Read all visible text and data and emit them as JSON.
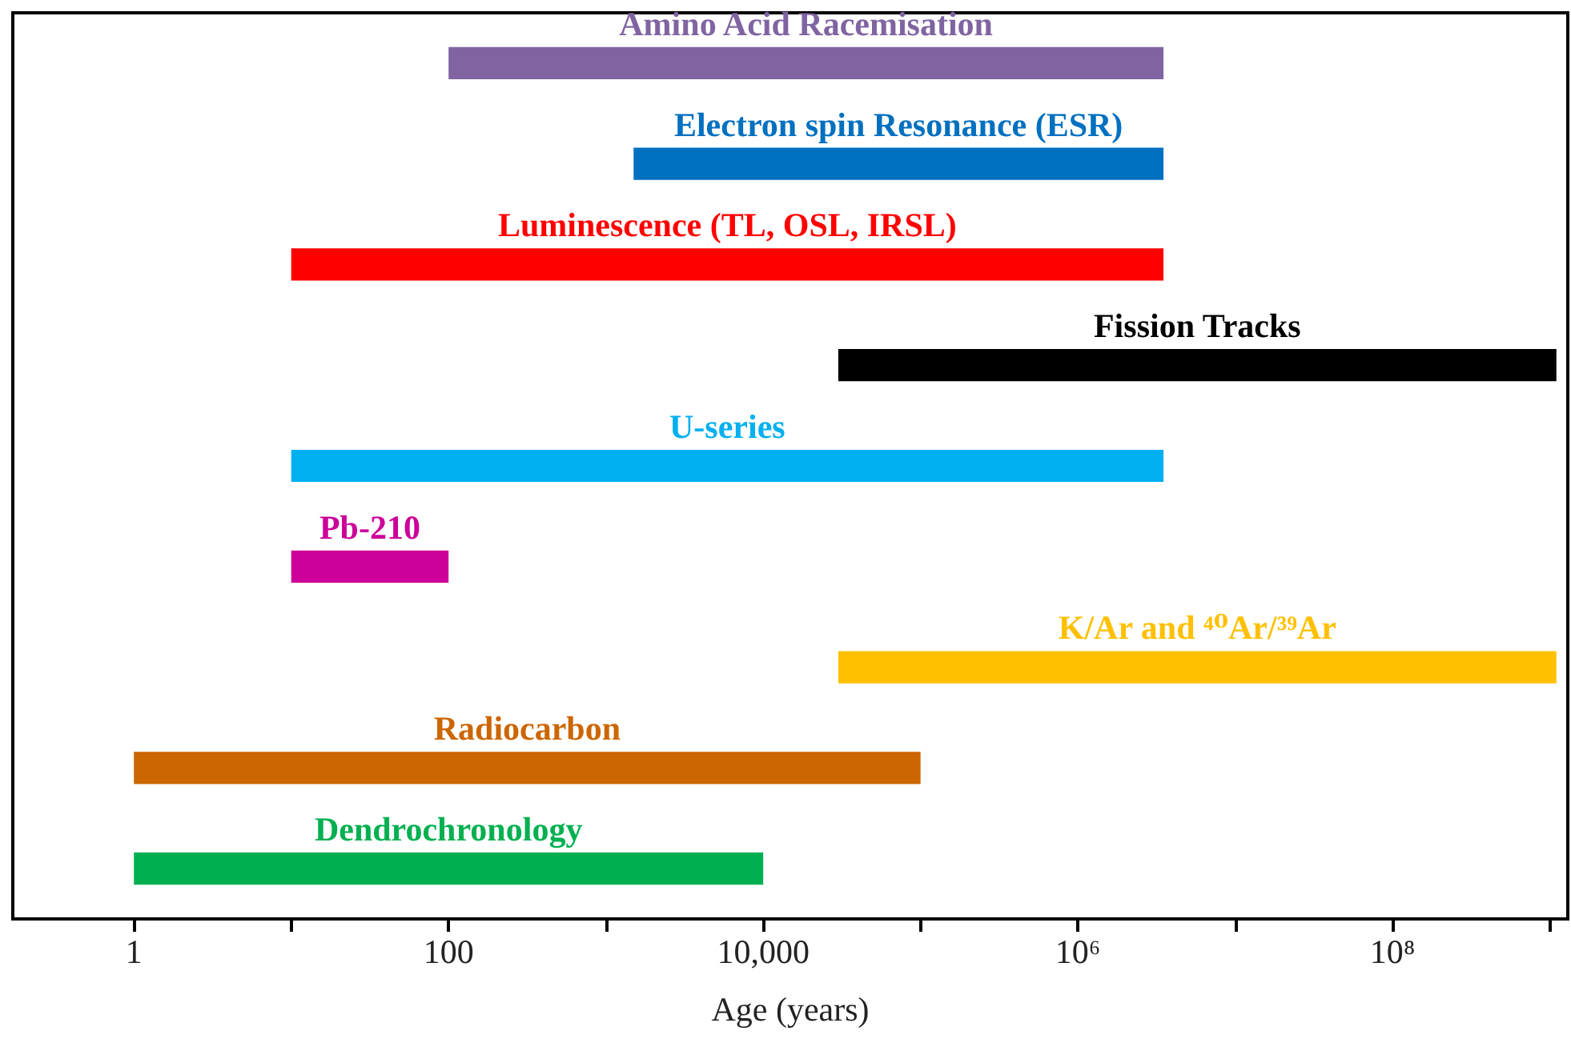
{
  "chart_data": {
    "type": "bar",
    "orientation": "horizontal",
    "log": "x",
    "tick_labels": "x",
    "grid": false,
    "xlabel": "Age (years)",
    "categories": [
      "Amino Acid Racemisation",
      "Electron spin Resonance (ESR)",
      "Luminescence (TL, OSL, IRSL)",
      "Fission Tracks",
      "U-series",
      "Pb-210",
      "K/Ar and ⁴⁰Ar/³⁹Ar",
      "Radiocarbon",
      "Dendrochronology"
    ],
    "base": [
      100,
      1500,
      10,
      30000,
      10,
      10,
      30000,
      1,
      1
    ],
    "values": [
      3499900,
      3498500,
      3499990,
      1099970000,
      3499990,
      90,
      1099970000,
      99999,
      9999
    ],
    "colors": [
      "#8064a2",
      "#0070c0",
      "#ff0000",
      "#000000",
      "#00b0f0",
      "#cc0099",
      "#ffc000",
      "#cc6600",
      "#00b050"
    ],
    "xlim": [
      0.17,
      1300000000
    ],
    "xticks": [
      {
        "value": 1,
        "label": "1"
      },
      {
        "value": 10,
        "label": null
      },
      {
        "value": 100,
        "label": "100"
      },
      {
        "value": 1000,
        "label": null
      },
      {
        "value": 10000,
        "label": "10,000"
      },
      {
        "value": 100000,
        "label": null
      },
      {
        "value": 1000000,
        "label": "10⁶"
      },
      {
        "value": 10000000,
        "label": null
      },
      {
        "value": 100000000,
        "label": "10⁸"
      },
      {
        "value": 1000000000,
        "label": null
      }
    ]
  }
}
